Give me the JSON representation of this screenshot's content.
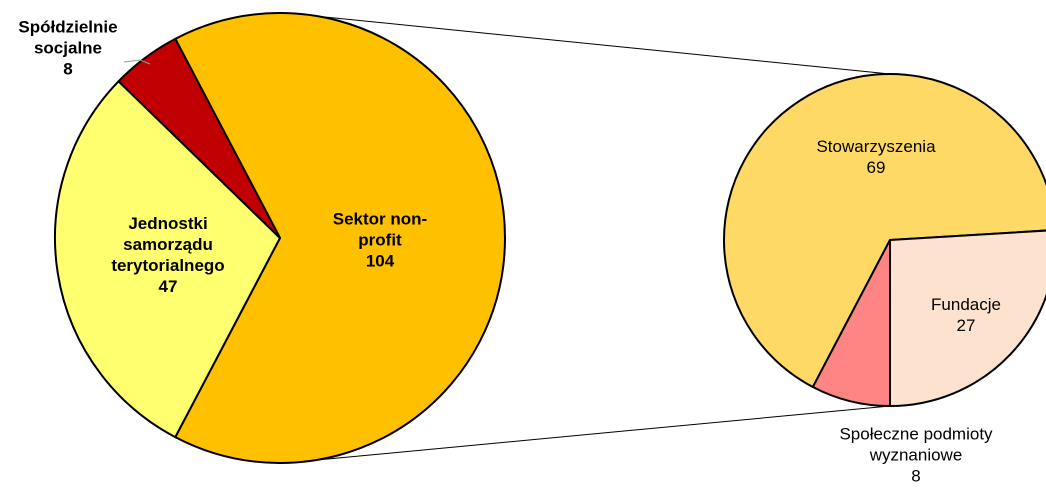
{
  "chart_data": [
    {
      "type": "pie",
      "categories": [
        "Sektor non-profit",
        "Jednostki samorządu terytorialnego",
        "Spółdzielnie socjalne"
      ],
      "values": [
        104,
        47,
        8
      ],
      "colors": [
        "#FFC000",
        "#FFFF70",
        "#C00000"
      ]
    },
    {
      "type": "pie",
      "categories": [
        "Stowarzyszenia",
        "Fundacje",
        "Społeczne podmioty wyznaniowe"
      ],
      "values": [
        69,
        27,
        8
      ],
      "colors": [
        "#FFD966",
        "#FDE3CF",
        "#FF8585"
      ]
    }
  ]
}
